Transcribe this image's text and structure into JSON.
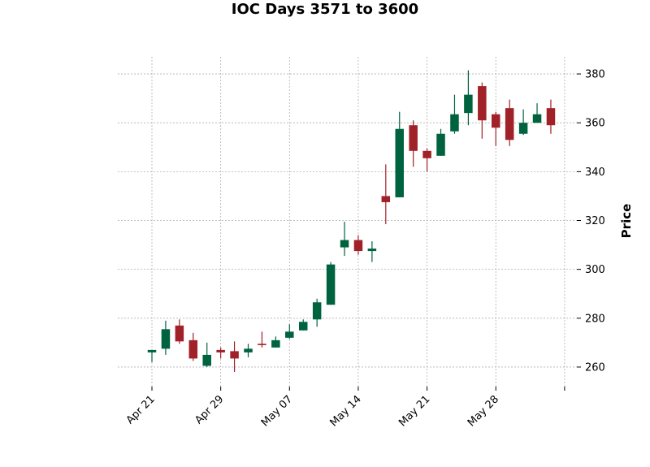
{
  "chart_data": {
    "type": "candlestick",
    "title": "IOC Days 3571 to 3600",
    "ylabel": "Price",
    "xlabel": "",
    "ylim": [
      252,
      387
    ],
    "y_ticks": [
      260,
      280,
      300,
      320,
      340,
      360,
      380
    ],
    "x_ticks": [
      {
        "label": "Apr 21",
        "index": 0
      },
      {
        "label": "Apr 29",
        "index": 5
      },
      {
        "label": "May 07",
        "index": 10
      },
      {
        "label": "May 14",
        "index": 15
      },
      {
        "label": "May 21",
        "index": 20
      },
      {
        "label": "May 28",
        "index": 25
      },
      {
        "label": "",
        "index": 30
      }
    ],
    "grid": true,
    "colors": {
      "up": "#006340",
      "down": "#A02128"
    },
    "candles": [
      {
        "open": 266.0,
        "high": 267.0,
        "low": 262.0,
        "close": 267.0
      },
      {
        "open": 267.5,
        "high": 279.0,
        "low": 265.0,
        "close": 275.5
      },
      {
        "open": 277.0,
        "high": 279.5,
        "low": 269.5,
        "close": 270.5
      },
      {
        "open": 271.0,
        "high": 274.0,
        "low": 262.5,
        "close": 263.5
      },
      {
        "open": 260.5,
        "high": 270.0,
        "low": 260.0,
        "close": 265.0
      },
      {
        "open": 267.0,
        "high": 268.0,
        "low": 263.5,
        "close": 266.0
      },
      {
        "open": 266.5,
        "high": 270.5,
        "low": 258.0,
        "close": 263.5
      },
      {
        "open": 266.0,
        "high": 269.5,
        "low": 264.0,
        "close": 267.5
      },
      {
        "open": 269.5,
        "high": 274.5,
        "low": 268.0,
        "close": 269.0
      },
      {
        "open": 268.0,
        "high": 272.5,
        "low": 268.0,
        "close": 271.0
      },
      {
        "open": 272.0,
        "high": 277.5,
        "low": 271.5,
        "close": 274.5
      },
      {
        "open": 275.0,
        "high": 279.5,
        "low": 275.0,
        "close": 278.5
      },
      {
        "open": 279.5,
        "high": 288.0,
        "low": 276.5,
        "close": 286.5
      },
      {
        "open": 285.5,
        "high": 303.0,
        "low": 285.5,
        "close": 302.0
      },
      {
        "open": 309.0,
        "high": 319.5,
        "low": 305.5,
        "close": 312.0
      },
      {
        "open": 312.0,
        "high": 314.0,
        "low": 306.0,
        "close": 307.5
      },
      {
        "open": 307.5,
        "high": 311.5,
        "low": 303.0,
        "close": 308.5
      },
      {
        "open": 330.0,
        "high": 343.0,
        "low": 318.5,
        "close": 327.5
      },
      {
        "open": 329.5,
        "high": 364.5,
        "low": 329.5,
        "close": 357.5
      },
      {
        "open": 359.0,
        "high": 361.0,
        "low": 342.0,
        "close": 348.5
      },
      {
        "open": 348.5,
        "high": 349.5,
        "low": 340.0,
        "close": 345.5
      },
      {
        "open": 346.5,
        "high": 357.5,
        "low": 346.5,
        "close": 355.5
      },
      {
        "open": 356.5,
        "high": 371.5,
        "low": 355.5,
        "close": 363.5
      },
      {
        "open": 364.0,
        "high": 381.5,
        "low": 359.0,
        "close": 371.5
      },
      {
        "open": 375.0,
        "high": 376.5,
        "low": 353.5,
        "close": 361.0
      },
      {
        "open": 363.5,
        "high": 364.5,
        "low": 350.5,
        "close": 358.0
      },
      {
        "open": 366.0,
        "high": 369.5,
        "low": 350.5,
        "close": 353.0
      },
      {
        "open": 355.5,
        "high": 365.5,
        "low": 355.0,
        "close": 360.0
      },
      {
        "open": 360.0,
        "high": 368.0,
        "low": 360.0,
        "close": 363.5
      },
      {
        "open": 366.0,
        "high": 369.5,
        "low": 355.5,
        "close": 359.0
      }
    ]
  }
}
